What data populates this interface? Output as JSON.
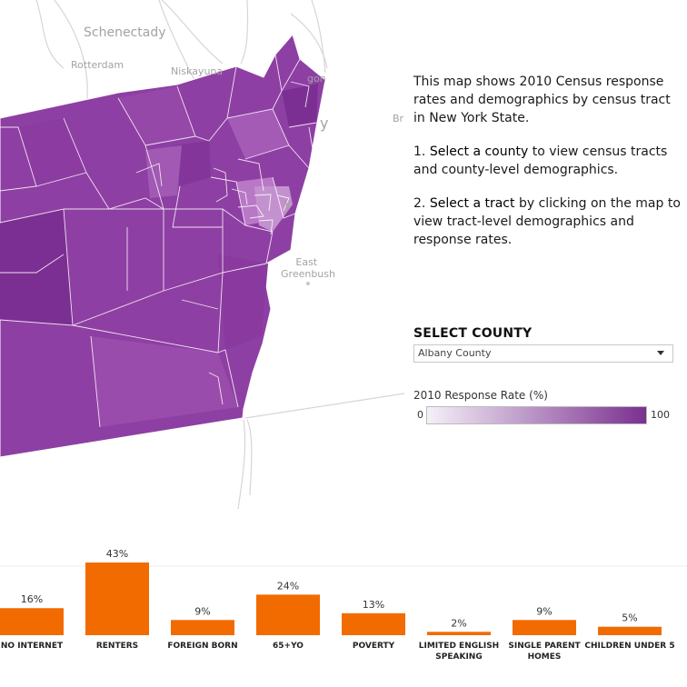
{
  "map": {
    "places": [
      "Schenectady",
      "Rotterdam",
      "Niskayuna",
      "East Greenbush"
    ],
    "partial_labels": [
      "y",
      "Br",
      "y",
      "gon"
    ]
  },
  "info": {
    "intro": "This map shows 2010 Census response rates and demographics by census tract in New York State.",
    "step1_num": "1.",
    "step1_bold": "Select a county",
    "step1_rest": "to view census tracts and county-level demographics.",
    "step2_num": "2.",
    "step2_bold": "Select a tract",
    "step2_rest": "by clicking on the map to view tract-level demographics and response rates."
  },
  "county_select": {
    "title": "SELECT COUNTY",
    "value": "Albany County"
  },
  "legend": {
    "title": "2010 Response Rate (%)",
    "min_label": "0",
    "max_label": "100",
    "color_low": "#f5f0f7",
    "color_high": "#7a3090"
  },
  "colors": {
    "map_fill": "#8e3fa3",
    "map_dark": "#7a2f90",
    "bar_color": "#f26b00",
    "road": "#d0d0d0"
  },
  "chart_data": {
    "type": "bar",
    "categories": [
      "NO INTERNET",
      "RENTERS",
      "FOREIGN BORN",
      "65+YO",
      "POVERTY",
      "LIMITED ENGLISH SPEAKING",
      "SINGLE PARENT HOMES",
      "CHILDREN UNDER 5"
    ],
    "category_lines": [
      [
        "NO INTERNET"
      ],
      [
        "RENTERS"
      ],
      [
        "FOREIGN BORN"
      ],
      [
        "65+YO"
      ],
      [
        "POVERTY"
      ],
      [
        "LIMITED ENGLISH",
        "SPEAKING"
      ],
      [
        "SINGLE PARENT",
        "HOMES"
      ],
      [
        "CHILDREN UNDER 5"
      ]
    ],
    "values": [
      16,
      43,
      9,
      24,
      13,
      2,
      9,
      5
    ],
    "value_labels": [
      "16%",
      "43%",
      "9%",
      "24%",
      "13%",
      "2%",
      "9%",
      "5%"
    ],
    "ylim": [
      0,
      43
    ],
    "grid": true
  }
}
